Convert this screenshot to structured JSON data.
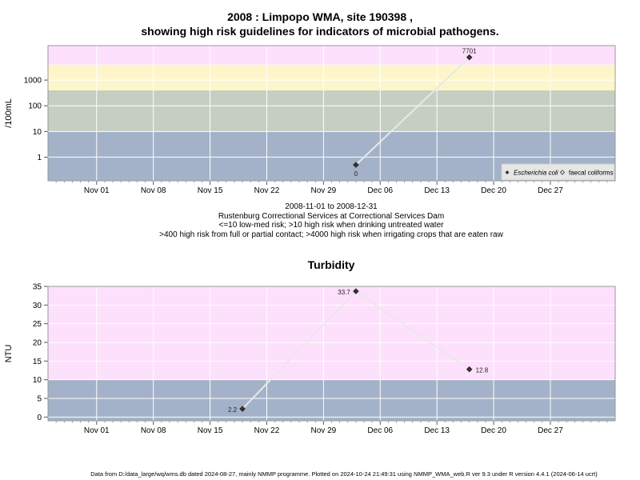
{
  "main_title_line1": "2008 : Limpopo WMA, site 190398 ,",
  "main_title_line2": "showing high risk guidelines for indicators of microbial pathogens.",
  "caption": {
    "line1": "2008-11-01 to 2008-12-31",
    "line2": "Rustenburg Correctional Services at Correctional Services Dam",
    "line3": "<=10 low-med risk; >10 high risk when drinking untreated water",
    "line4": ">400 high risk from full or partial contact; >4000 high risk when irrigating crops that are eaten raw"
  },
  "footer": "Data from D:/data_large/wq/wms.db dated 2024-08-27, mainly NMMP programme. Plotted on 2024-10-24 21:49:31 using NMMP_WMA_web.R ver 9.3 under R version 4.4.1 (2024-06-14 ucrt)",
  "colors": {
    "band_low": "#a3b2c8",
    "band_med": "#c5cec1",
    "band_high": "#fdf6cb",
    "band_vhigh": "#fde0fb",
    "line": "#e8e8e8",
    "point": "#333333"
  },
  "chart_data": [
    {
      "type": "line",
      "ylabel": "/100mL",
      "yscale": "log",
      "ylim": [
        0.12,
        22000
      ],
      "xlim": [
        "2008-10-26",
        "2009-01-04"
      ],
      "x_ticks": [
        "Nov 01",
        "Nov 08",
        "Nov 15",
        "Nov 22",
        "Nov 29",
        "Dec 06",
        "Dec 13",
        "Dec 20",
        "Dec 27"
      ],
      "y_ticks": [
        "1",
        "10",
        "100",
        "1000"
      ],
      "guideline_bands": [
        {
          "from": 0.12,
          "to": 10,
          "color": "#a3b2c8"
        },
        {
          "from": 10,
          "to": 400,
          "color": "#c5cec1"
        },
        {
          "from": 400,
          "to": 4000,
          "color": "#fdf6cb"
        },
        {
          "from": 4000,
          "to": 22000,
          "color": "#fde0fb"
        }
      ],
      "series": [
        {
          "name": "Escherichia coli",
          "marker": "filled-diamond",
          "x": [
            "2008-12-03",
            "2008-12-17"
          ],
          "y": [
            0.5,
            7701
          ],
          "labels": [
            "0",
            "7701"
          ]
        },
        {
          "name": "faecal coliforms",
          "marker": "open-diamond",
          "x": [],
          "y": []
        }
      ],
      "legend": "bottom-right"
    },
    {
      "type": "line",
      "title": "Turbidity",
      "ylabel": "NTU",
      "ylim": [
        -1,
        35
      ],
      "xlim": [
        "2008-10-26",
        "2009-01-04"
      ],
      "x_ticks": [
        "Nov 01",
        "Nov 08",
        "Nov 15",
        "Nov 22",
        "Nov 29",
        "Dec 06",
        "Dec 13",
        "Dec 20",
        "Dec 27"
      ],
      "y_ticks": [
        "0",
        "5",
        "10",
        "15",
        "20",
        "25",
        "30",
        "35"
      ],
      "guideline_bands": [
        {
          "from": -1,
          "to": 10,
          "color": "#a3b2c8"
        },
        {
          "from": 10,
          "to": 35,
          "color": "#fde0fb"
        }
      ],
      "series": [
        {
          "x": [
            "2008-11-19",
            "2008-12-03",
            "2008-12-17"
          ],
          "y": [
            2.2,
            33.7,
            12.8
          ],
          "labels": [
            "2.2",
            "33.7",
            "12.8"
          ]
        }
      ]
    }
  ]
}
